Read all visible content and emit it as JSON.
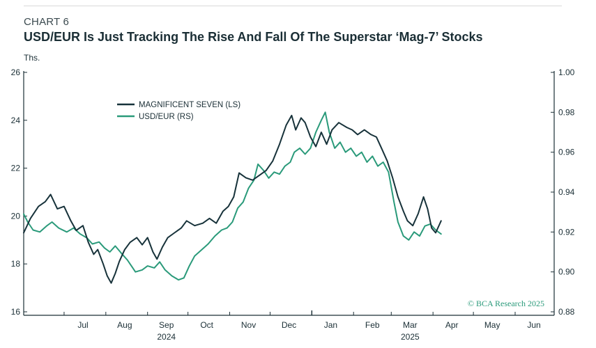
{
  "header": {
    "chart_number": "CHART 6",
    "title": "USD/EUR Is Just Tracking The Rise And Fall Of The Superstar ‘Mag-7’ Stocks",
    "unit": "Ths."
  },
  "credit": "© BCA Research 2025",
  "colors": {
    "mag7": "#17323a",
    "usdeur": "#2a9a7a",
    "axis": "#1a2e35",
    "credit": "#2a9a7a"
  },
  "chart_data": {
    "type": "line",
    "x_axis": {
      "range": [
        "2024-06-01",
        "2025-06-30"
      ],
      "month_labels": [
        {
          "label": "Jul",
          "date": "2024-07-15"
        },
        {
          "label": "Aug",
          "date": "2024-08-15"
        },
        {
          "label": "Sep",
          "date": "2024-09-15"
        },
        {
          "label": "Oct",
          "date": "2024-10-15"
        },
        {
          "label": "Nov",
          "date": "2024-11-15"
        },
        {
          "label": "Dec",
          "date": "2024-12-15"
        },
        {
          "label": "Jan",
          "date": "2025-01-15"
        },
        {
          "label": "Feb",
          "date": "2025-02-15"
        },
        {
          "label": "Mar",
          "date": "2025-03-15"
        },
        {
          "label": "Apr",
          "date": "2025-04-15"
        },
        {
          "label": "May",
          "date": "2025-05-15"
        },
        {
          "label": "Jun",
          "date": "2025-06-15"
        }
      ],
      "year_labels": [
        {
          "label": "2024",
          "date": "2024-09-15"
        },
        {
          "label": "2025",
          "date": "2025-03-15"
        }
      ]
    },
    "y_left": {
      "range": [
        16,
        26
      ],
      "ticks": [
        16,
        18,
        20,
        22,
        24,
        26
      ]
    },
    "y_right": {
      "range": [
        0.88,
        1.0
      ],
      "ticks": [
        0.88,
        0.9,
        0.92,
        0.94,
        0.96,
        0.98,
        1.0
      ]
    },
    "legend": {
      "position": "top-left"
    },
    "grid": false,
    "series": [
      {
        "name": "MAGNIFICENT SEVEN (LS)",
        "axis": "left",
        "points": [
          [
            "2024-06-01",
            19.3
          ],
          [
            "2024-06-06",
            19.9
          ],
          [
            "2024-06-12",
            20.4
          ],
          [
            "2024-06-17",
            20.6
          ],
          [
            "2024-06-21",
            20.9
          ],
          [
            "2024-06-26",
            20.3
          ],
          [
            "2024-07-01",
            20.4
          ],
          [
            "2024-07-06",
            19.8
          ],
          [
            "2024-07-10",
            19.4
          ],
          [
            "2024-07-15",
            19.6
          ],
          [
            "2024-07-19",
            18.9
          ],
          [
            "2024-07-23",
            18.4
          ],
          [
            "2024-07-26",
            18.6
          ],
          [
            "2024-07-30",
            18.0
          ],
          [
            "2024-08-02",
            17.5
          ],
          [
            "2024-08-05",
            17.2
          ],
          [
            "2024-08-08",
            17.6
          ],
          [
            "2024-08-11",
            18.1
          ],
          [
            "2024-08-15",
            18.6
          ],
          [
            "2024-08-19",
            18.9
          ],
          [
            "2024-08-24",
            19.1
          ],
          [
            "2024-08-28",
            18.8
          ],
          [
            "2024-09-01",
            19.1
          ],
          [
            "2024-09-05",
            18.5
          ],
          [
            "2024-09-08",
            18.2
          ],
          [
            "2024-09-12",
            18.7
          ],
          [
            "2024-09-16",
            19.1
          ],
          [
            "2024-09-21",
            19.3
          ],
          [
            "2024-09-26",
            19.5
          ],
          [
            "2024-09-30",
            19.8
          ],
          [
            "2024-10-06",
            19.6
          ],
          [
            "2024-10-12",
            19.7
          ],
          [
            "2024-10-17",
            19.9
          ],
          [
            "2024-10-22",
            19.7
          ],
          [
            "2024-10-27",
            20.2
          ],
          [
            "2024-10-31",
            20.4
          ],
          [
            "2024-11-04",
            20.8
          ],
          [
            "2024-11-08",
            21.8
          ],
          [
            "2024-11-13",
            21.6
          ],
          [
            "2024-11-18",
            21.5
          ],
          [
            "2024-11-23",
            21.7
          ],
          [
            "2024-11-28",
            21.9
          ],
          [
            "2024-12-03",
            22.3
          ],
          [
            "2024-12-08",
            23.0
          ],
          [
            "2024-12-13",
            23.8
          ],
          [
            "2024-12-17",
            24.2
          ],
          [
            "2024-12-20",
            23.6
          ],
          [
            "2024-12-24",
            24.1
          ],
          [
            "2024-12-27",
            23.9
          ],
          [
            "2024-12-31",
            23.3
          ],
          [
            "2025-01-04",
            22.9
          ],
          [
            "2025-01-08",
            23.5
          ],
          [
            "2025-01-12",
            23.0
          ],
          [
            "2025-01-16",
            23.6
          ],
          [
            "2025-01-21",
            23.9
          ],
          [
            "2025-01-27",
            23.7
          ],
          [
            "2025-01-31",
            23.6
          ],
          [
            "2025-02-04",
            23.4
          ],
          [
            "2025-02-09",
            23.6
          ],
          [
            "2025-02-14",
            23.4
          ],
          [
            "2025-02-18",
            23.3
          ],
          [
            "2025-02-22",
            22.8
          ],
          [
            "2025-02-26",
            22.3
          ],
          [
            "2025-03-02",
            21.6
          ],
          [
            "2025-03-06",
            20.8
          ],
          [
            "2025-03-10",
            20.2
          ],
          [
            "2025-03-13",
            19.8
          ],
          [
            "2025-03-17",
            19.6
          ],
          [
            "2025-03-21",
            20.1
          ],
          [
            "2025-03-25",
            20.8
          ],
          [
            "2025-03-28",
            20.3
          ],
          [
            "2025-03-31",
            19.5
          ],
          [
            "2025-04-03",
            19.3
          ],
          [
            "2025-04-07",
            19.8
          ]
        ]
      },
      {
        "name": "USD/EUR (RS)",
        "axis": "right",
        "points": [
          [
            "2024-06-01",
            0.929
          ],
          [
            "2024-06-04",
            0.925
          ],
          [
            "2024-06-08",
            0.921
          ],
          [
            "2024-06-13",
            0.92
          ],
          [
            "2024-06-18",
            0.923
          ],
          [
            "2024-06-22",
            0.925
          ],
          [
            "2024-06-27",
            0.922
          ],
          [
            "2024-07-03",
            0.92
          ],
          [
            "2024-07-08",
            0.922
          ],
          [
            "2024-07-13",
            0.919
          ],
          [
            "2024-07-18",
            0.917
          ],
          [
            "2024-07-22",
            0.914
          ],
          [
            "2024-07-27",
            0.915
          ],
          [
            "2024-07-31",
            0.912
          ],
          [
            "2024-08-04",
            0.91
          ],
          [
            "2024-08-08",
            0.913
          ],
          [
            "2024-08-13",
            0.909
          ],
          [
            "2024-08-17",
            0.906
          ],
          [
            "2024-08-20",
            0.903
          ],
          [
            "2024-08-23",
            0.9
          ],
          [
            "2024-08-28",
            0.901
          ],
          [
            "2024-09-01",
            0.903
          ],
          [
            "2024-09-06",
            0.902
          ],
          [
            "2024-09-10",
            0.905
          ],
          [
            "2024-09-14",
            0.901
          ],
          [
            "2024-09-19",
            0.898
          ],
          [
            "2024-09-24",
            0.896
          ],
          [
            "2024-09-28",
            0.897
          ],
          [
            "2024-10-02",
            0.903
          ],
          [
            "2024-10-06",
            0.908
          ],
          [
            "2024-10-11",
            0.911
          ],
          [
            "2024-10-16",
            0.914
          ],
          [
            "2024-10-21",
            0.918
          ],
          [
            "2024-10-26",
            0.921
          ],
          [
            "2024-10-30",
            0.922
          ],
          [
            "2024-11-03",
            0.925
          ],
          [
            "2024-11-07",
            0.932
          ],
          [
            "2024-11-11",
            0.935
          ],
          [
            "2024-11-15",
            0.942
          ],
          [
            "2024-11-19",
            0.946
          ],
          [
            "2024-11-22",
            0.954
          ],
          [
            "2024-11-26",
            0.951
          ],
          [
            "2024-11-30",
            0.947
          ],
          [
            "2024-12-04",
            0.95
          ],
          [
            "2024-12-08",
            0.949
          ],
          [
            "2024-12-12",
            0.953
          ],
          [
            "2024-12-16",
            0.955
          ],
          [
            "2024-12-19",
            0.96
          ],
          [
            "2024-12-23",
            0.962
          ],
          [
            "2024-12-27",
            0.959
          ],
          [
            "2024-12-31",
            0.962
          ],
          [
            "2025-01-04",
            0.97
          ],
          [
            "2025-01-08",
            0.976
          ],
          [
            "2025-01-11",
            0.98
          ],
          [
            "2025-01-14",
            0.97
          ],
          [
            "2025-01-18",
            0.962
          ],
          [
            "2025-01-22",
            0.965
          ],
          [
            "2025-01-26",
            0.96
          ],
          [
            "2025-01-30",
            0.962
          ],
          [
            "2025-02-03",
            0.958
          ],
          [
            "2025-02-07",
            0.96
          ],
          [
            "2025-02-11",
            0.955
          ],
          [
            "2025-02-15",
            0.958
          ],
          [
            "2025-02-19",
            0.953
          ],
          [
            "2025-02-23",
            0.955
          ],
          [
            "2025-02-27",
            0.95
          ],
          [
            "2025-03-03",
            0.935
          ],
          [
            "2025-03-06",
            0.925
          ],
          [
            "2025-03-10",
            0.918
          ],
          [
            "2025-03-14",
            0.916
          ],
          [
            "2025-03-18",
            0.92
          ],
          [
            "2025-03-22",
            0.918
          ],
          [
            "2025-03-26",
            0.923
          ],
          [
            "2025-03-30",
            0.924
          ],
          [
            "2025-04-03",
            0.921
          ],
          [
            "2025-04-07",
            0.919
          ]
        ]
      }
    ]
  }
}
